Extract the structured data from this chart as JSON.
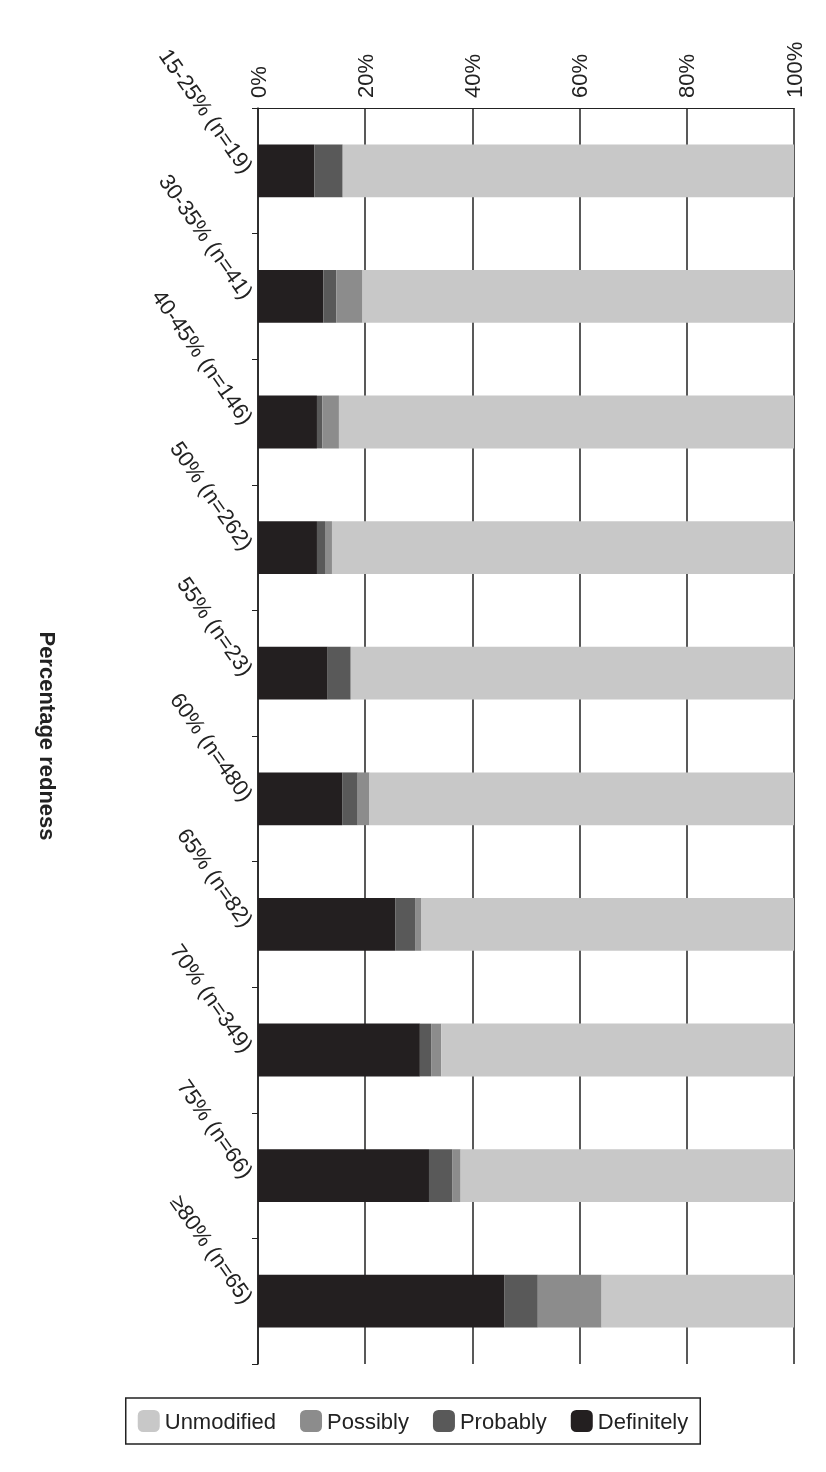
{
  "chart_data": {
    "type": "bar",
    "orientation": "horizontal",
    "stacked": true,
    "ylabel": "Percentage redness",
    "categories": [
      "15-25% (n=19)",
      "30-35% (n=41)",
      "40-45% (n=146)",
      "50% (n=262)",
      "55% (n=23)",
      "60% (n=480)",
      "65% (n=82)",
      "70% (n=349)",
      "75% (n=66)",
      "≥80% (n=65)"
    ],
    "series": [
      {
        "name": "Definitely",
        "color": "#231f20",
        "values": [
          10.5,
          12.2,
          11.0,
          11.0,
          13.0,
          15.7,
          25.6,
          30.2,
          31.9,
          46.0
        ]
      },
      {
        "name": "Probably",
        "color": "#595959",
        "values": [
          5.3,
          2.4,
          1.0,
          1.5,
          4.3,
          2.9,
          3.7,
          2.1,
          4.4,
          6.2
        ]
      },
      {
        "name": "Possibly",
        "color": "#8c8c8c",
        "values": [
          0,
          4.9,
          3.1,
          1.3,
          0,
          2.2,
          1.2,
          1.9,
          1.5,
          11.9
        ]
      },
      {
        "name": "Unmodified",
        "color": "#c8c8c8",
        "values": [
          84.2,
          80.5,
          84.9,
          86.2,
          82.7,
          79.2,
          69.5,
          65.8,
          62.2,
          35.9
        ]
      }
    ],
    "xlim": [
      0,
      100
    ],
    "xticks": [
      {
        "value": 0,
        "label": "0%"
      },
      {
        "value": 20,
        "label": "20%"
      },
      {
        "value": 40,
        "label": "40%"
      },
      {
        "value": 60,
        "label": "60%"
      },
      {
        "value": 80,
        "label": "80%"
      },
      {
        "value": 100,
        "label": "100%"
      }
    ],
    "grid": "x",
    "legend": "bottom"
  }
}
